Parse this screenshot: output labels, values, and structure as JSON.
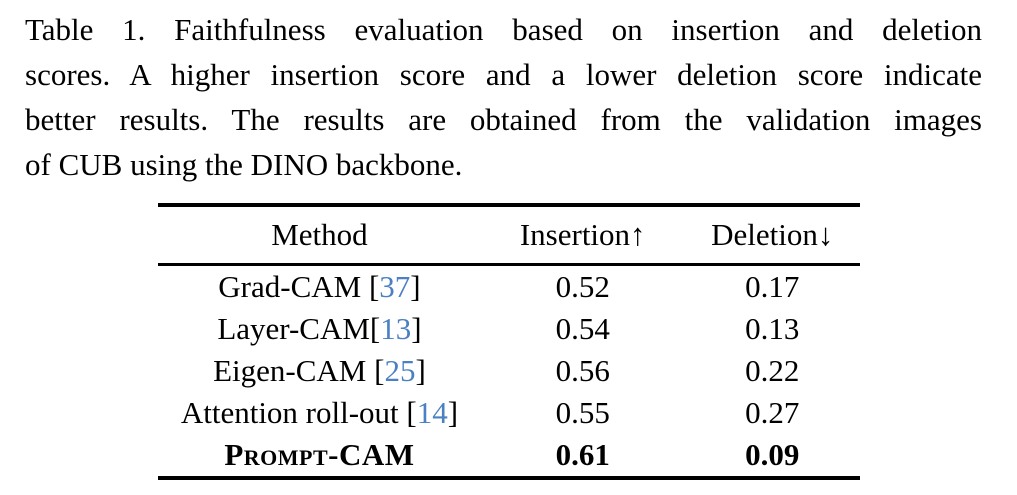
{
  "caption": {
    "lines": [
      "Table 1.  Faithfulness evaluation based on insertion and deletion",
      "scores. A higher insertion score and a lower deletion score indicate",
      "better results. The results are obtained from the validation images",
      "of CUB using the DINO backbone."
    ]
  },
  "table": {
    "columns": [
      "Method",
      "Insertion↑",
      "Deletion↓"
    ],
    "rows": [
      {
        "name": "Grad-CAM ",
        "bracket_open": "[",
        "cite": "37",
        "bracket_close": "]",
        "insertion": "0.52",
        "deletion": "0.17"
      },
      {
        "name": "Layer-CAM",
        "bracket_open": "[",
        "cite": "13",
        "bracket_close": "]",
        "insertion": "0.54",
        "deletion": "0.13"
      },
      {
        "name": "Eigen-CAM ",
        "bracket_open": "[",
        "cite": "25",
        "bracket_close": "]",
        "insertion": "0.56",
        "deletion": "0.22"
      },
      {
        "name": "Attention roll-out ",
        "bracket_open": "[",
        "cite": "14",
        "bracket_close": "]",
        "insertion": "0.55",
        "deletion": "0.27"
      },
      {
        "name": "Prompt-CAM",
        "bracket_open": "",
        "cite": "",
        "bracket_close": "",
        "insertion": "0.61",
        "deletion": "0.09"
      }
    ]
  },
  "colors": {
    "citation_blue": "#4b80c2",
    "text": "#000000",
    "background": "#ffffff"
  }
}
